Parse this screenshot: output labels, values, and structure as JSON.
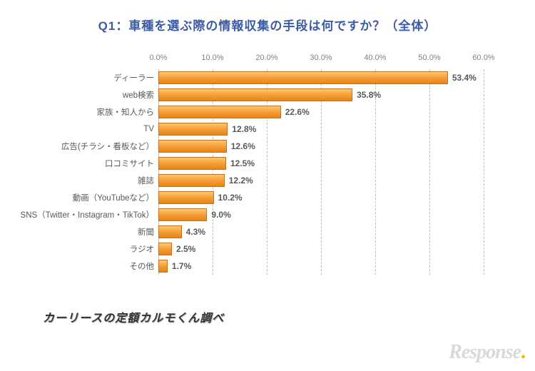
{
  "title": {
    "text": "Q1：車種を選ぶ際の情報収集の手段は何ですか？（全体）",
    "color": "#3b5ba5",
    "fontsize": 17
  },
  "chart": {
    "type": "bar-horizontal",
    "xlim": [
      0,
      60
    ],
    "xtick_step": 10,
    "xtick_suffix": ".0%",
    "gridline_color": "#bfbfbf",
    "axis_label_color": "#808080",
    "axis_label_fontsize": 11,
    "bar_border_color": "#c07020",
    "bar_gradient_top": "#ffc870",
    "bar_gradient_mid": "#f7a23a",
    "bar_gradient_bottom": "#e8841a",
    "label_color": "#595959",
    "label_fontsize": 11.5,
    "value_color": "#595959",
    "value_fontsize": 12,
    "value_suffix": "%",
    "items": [
      {
        "label": "ディーラー",
        "value": 53.4
      },
      {
        "label": "web検索",
        "value": 35.8
      },
      {
        "label": "家族・知人から",
        "value": 22.6
      },
      {
        "label": "TV",
        "value": 12.8
      },
      {
        "label": "広告(チラシ・看板など）",
        "value": 12.6
      },
      {
        "label": "口コミサイト",
        "value": 12.5
      },
      {
        "label": "雑誌",
        "value": 12.2
      },
      {
        "label": "動画（YouTubeなど）",
        "value": 10.2
      },
      {
        "label": "SNS（Twitter・Instagram・TikTok）",
        "value": 9.0
      },
      {
        "label": "新聞",
        "value": 4.3
      },
      {
        "label": "ラジオ",
        "value": 2.5
      },
      {
        "label": "その他",
        "value": 1.7
      }
    ]
  },
  "source_text": "カーリースの定額カルモくん調べ",
  "watermark": {
    "prefix": "Response",
    "dot": "."
  }
}
